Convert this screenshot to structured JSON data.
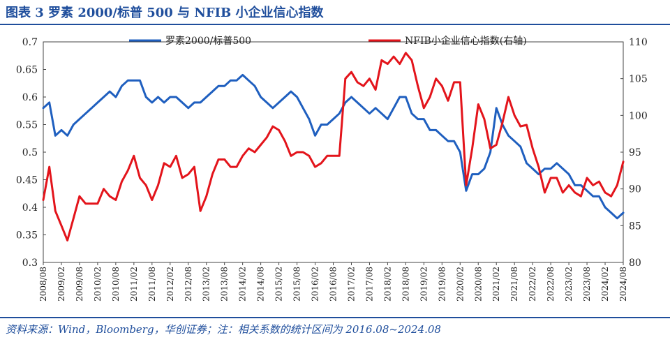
{
  "title": "图表 3   罗素 2000/标普 500 与 NFIB 小企业信心指数",
  "source": "资料来源：Wind，Bloomberg，华创证券；注：相关系数的统计区间为 2016.08~2024.08",
  "colors": {
    "left_series": "#1f5fbf",
    "right_series": "#e3141b",
    "title": "#1f4e9c",
    "axis": "#444444"
  },
  "chart_data": {
    "type": "line",
    "legend_position": "top",
    "grid": false,
    "x_ticks": [
      "2008/08",
      "2009/02",
      "2009/08",
      "2010/02",
      "2010/08",
      "2011/02",
      "2011/08",
      "2012/02",
      "2012/08",
      "2013/02",
      "2013/08",
      "2014/02",
      "2014/08",
      "2015/02",
      "2015/08",
      "2016/02",
      "2016/08",
      "2017/02",
      "2017/08",
      "2018/02",
      "2018/08",
      "2019/02",
      "2019/08",
      "2020/02",
      "2020/08",
      "2021/02",
      "2021/08",
      "2022/02",
      "2022/08",
      "2023/02",
      "2023/08",
      "2024/02",
      "2024/08"
    ],
    "y_left": {
      "min": 0.3,
      "max": 0.7,
      "ticks": [
        "0.3",
        "0.35",
        "0.4",
        "0.45",
        "0.5",
        "0.55",
        "0.6",
        "0.65",
        "0.7"
      ]
    },
    "y_right": {
      "min": 80,
      "max": 110,
      "ticks": [
        "80",
        "85",
        "90",
        "95",
        "100",
        "105",
        "110"
      ]
    },
    "series": [
      {
        "name": "罗素2000/标普500",
        "axis": "left",
        "x": [
          "2008/08",
          "2008/10",
          "2008/12",
          "2009/02",
          "2009/04",
          "2009/06",
          "2009/08",
          "2009/10",
          "2009/12",
          "2010/02",
          "2010/04",
          "2010/06",
          "2010/08",
          "2010/10",
          "2010/12",
          "2011/02",
          "2011/04",
          "2011/06",
          "2011/08",
          "2011/10",
          "2011/12",
          "2012/02",
          "2012/04",
          "2012/06",
          "2012/08",
          "2012/10",
          "2012/12",
          "2013/02",
          "2013/04",
          "2013/06",
          "2013/08",
          "2013/10",
          "2013/12",
          "2014/02",
          "2014/04",
          "2014/06",
          "2014/08",
          "2014/10",
          "2014/12",
          "2015/02",
          "2015/04",
          "2015/06",
          "2015/08",
          "2015/10",
          "2015/12",
          "2016/02",
          "2016/04",
          "2016/06",
          "2016/08",
          "2016/10",
          "2016/12",
          "2017/02",
          "2017/04",
          "2017/06",
          "2017/08",
          "2017/10",
          "2017/12",
          "2018/02",
          "2018/04",
          "2018/06",
          "2018/08",
          "2018/10",
          "2018/12",
          "2019/02",
          "2019/04",
          "2019/06",
          "2019/08",
          "2019/10",
          "2019/12",
          "2020/02",
          "2020/04",
          "2020/06",
          "2020/08",
          "2020/10",
          "2020/12",
          "2021/02",
          "2021/04",
          "2021/06",
          "2021/08",
          "2021/10",
          "2021/12",
          "2022/02",
          "2022/04",
          "2022/06",
          "2022/08",
          "2022/10",
          "2022/12",
          "2023/02",
          "2023/04",
          "2023/06",
          "2023/08",
          "2023/10",
          "2023/12",
          "2024/02",
          "2024/04",
          "2024/06",
          "2024/08"
        ],
        "values": [
          0.58,
          0.59,
          0.53,
          0.54,
          0.53,
          0.55,
          0.56,
          0.57,
          0.58,
          0.59,
          0.6,
          0.61,
          0.6,
          0.62,
          0.63,
          0.63,
          0.63,
          0.6,
          0.59,
          0.6,
          0.59,
          0.6,
          0.6,
          0.59,
          0.58,
          0.59,
          0.59,
          0.6,
          0.61,
          0.62,
          0.62,
          0.63,
          0.63,
          0.64,
          0.63,
          0.62,
          0.6,
          0.59,
          0.58,
          0.59,
          0.6,
          0.61,
          0.6,
          0.58,
          0.56,
          0.53,
          0.55,
          0.55,
          0.56,
          0.57,
          0.59,
          0.6,
          0.59,
          0.58,
          0.57,
          0.58,
          0.57,
          0.56,
          0.58,
          0.6,
          0.6,
          0.57,
          0.56,
          0.56,
          0.54,
          0.54,
          0.53,
          0.52,
          0.52,
          0.5,
          0.43,
          0.46,
          0.46,
          0.47,
          0.5,
          0.58,
          0.55,
          0.53,
          0.52,
          0.51,
          0.48,
          0.47,
          0.46,
          0.47,
          0.47,
          0.48,
          0.47,
          0.46,
          0.44,
          0.44,
          0.43,
          0.42,
          0.42,
          0.4,
          0.39,
          0.38,
          0.39
        ]
      },
      {
        "name": "NFIB小企业信心指数(右轴)",
        "axis": "right",
        "x": [
          "2008/08",
          "2008/10",
          "2008/12",
          "2009/02",
          "2009/04",
          "2009/06",
          "2009/08",
          "2009/10",
          "2009/12",
          "2010/02",
          "2010/04",
          "2010/06",
          "2010/08",
          "2010/10",
          "2010/12",
          "2011/02",
          "2011/04",
          "2011/06",
          "2011/08",
          "2011/10",
          "2011/12",
          "2012/02",
          "2012/04",
          "2012/06",
          "2012/08",
          "2012/10",
          "2012/12",
          "2013/02",
          "2013/04",
          "2013/06",
          "2013/08",
          "2013/10",
          "2013/12",
          "2014/02",
          "2014/04",
          "2014/06",
          "2014/08",
          "2014/10",
          "2014/12",
          "2015/02",
          "2015/04",
          "2015/06",
          "2015/08",
          "2015/10",
          "2015/12",
          "2016/02",
          "2016/04",
          "2016/06",
          "2016/08",
          "2016/10",
          "2016/12",
          "2017/02",
          "2017/04",
          "2017/06",
          "2017/08",
          "2017/10",
          "2017/12",
          "2018/02",
          "2018/04",
          "2018/06",
          "2018/08",
          "2018/10",
          "2018/12",
          "2019/02",
          "2019/04",
          "2019/06",
          "2019/08",
          "2019/10",
          "2019/12",
          "2020/02",
          "2020/04",
          "2020/06",
          "2020/08",
          "2020/10",
          "2020/12",
          "2021/02",
          "2021/04",
          "2021/06",
          "2021/08",
          "2021/10",
          "2021/12",
          "2022/02",
          "2022/04",
          "2022/06",
          "2022/08",
          "2022/10",
          "2022/12",
          "2023/02",
          "2023/04",
          "2023/06",
          "2023/08",
          "2023/10",
          "2023/12",
          "2024/02",
          "2024/04",
          "2024/06",
          "2024/08"
        ],
        "values": [
          88.5,
          93,
          87,
          85,
          83,
          86,
          89,
          88,
          88,
          88,
          90,
          89,
          88.5,
          91,
          92.5,
          94.5,
          91.5,
          90.5,
          88.5,
          90.5,
          93.5,
          93,
          94.5,
          91.5,
          92,
          93,
          87,
          89,
          92,
          94,
          94,
          93,
          93,
          94.5,
          95.5,
          95,
          96,
          97,
          98.5,
          98,
          96.5,
          94.5,
          95,
          95,
          94.5,
          93,
          93.5,
          94.5,
          94.5,
          94.5,
          105,
          105.9,
          104.5,
          104,
          105,
          103.5,
          107.5,
          107,
          108,
          107,
          108.5,
          107.5,
          104,
          101,
          102.5,
          105,
          104,
          102,
          104.5,
          104.5,
          90.5,
          95.5,
          101.5,
          99.5,
          95.5,
          96,
          99,
          102.5,
          100,
          98.5,
          98.7,
          95.5,
          93,
          89.5,
          91.5,
          91.5,
          89.5,
          90.5,
          89.5,
          89,
          91.5,
          90.5,
          91,
          89.5,
          89,
          90.5,
          93.7
        ]
      }
    ]
  }
}
